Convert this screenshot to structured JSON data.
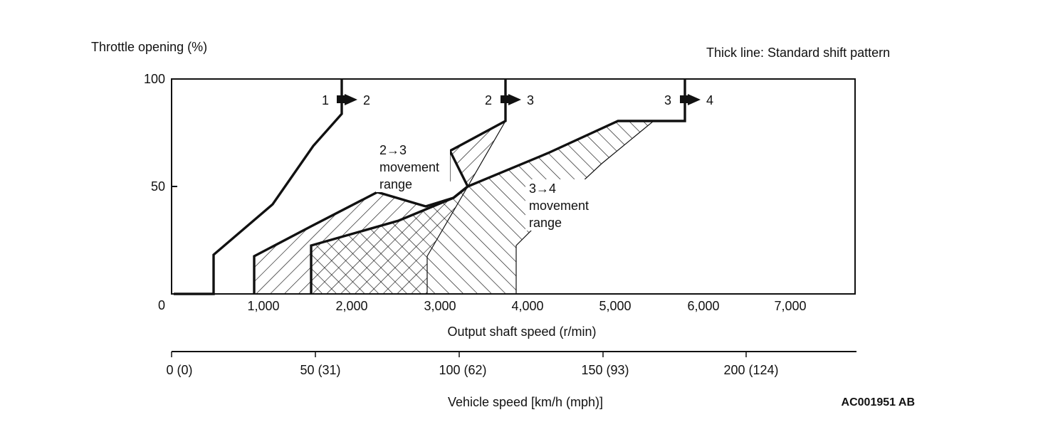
{
  "header": {
    "y_axis_title": "Throttle opening (%)",
    "legend_note": "Thick line: Standard shift pattern"
  },
  "y_ticks": [
    "100",
    "50",
    "0"
  ],
  "x_ticks": [
    "1,000",
    "2,000",
    "3,000",
    "4,000",
    "5,000",
    "6,000",
    "7,000"
  ],
  "x_axis_title": "Output shaft speed (r/min)",
  "vehicle_ticks": [
    "0 (0)",
    "50 (31)",
    "100 (62)",
    "150 (93)",
    "200 (124)"
  ],
  "vehicle_axis_title": "Vehicle speed [km/h (mph)]",
  "figure_code": "AC001951 AB",
  "shifts": {
    "s12": {
      "from": "1",
      "to": "2"
    },
    "s23": {
      "from": "2",
      "to": "3"
    },
    "s34": {
      "from": "3",
      "to": "4"
    }
  },
  "range_labels": {
    "r23": [
      "2→3",
      "movement",
      "range"
    ],
    "r34": [
      "3→4",
      "movement",
      "range"
    ]
  },
  "colors": {
    "line": "#111111",
    "background": "#ffffff"
  }
}
